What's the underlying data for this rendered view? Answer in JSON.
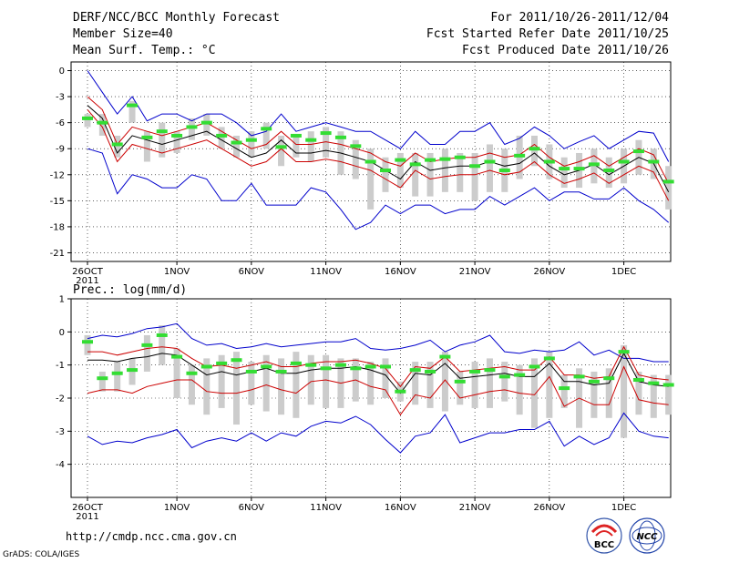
{
  "header": {
    "title": "DERF/NCC/BCC Monthly Forecast",
    "member_size": "Member Size=40",
    "variable": "Mean Surf. Temp.: °C",
    "period": "For 2011/10/26-2011/12/04",
    "start_date": "Fcst Started Refer Date 2011/10/25",
    "produced_date": "Fcst Produced Date 2011/10/26"
  },
  "footer": {
    "url": "http://cmdp.ncc.cma.gov.cn",
    "credit": "GrADS: COLA/IGES",
    "logo_bcc": "BCC",
    "logo_ncc": "NCC"
  },
  "colors": {
    "max_min": "#0000cc",
    "spread": "#cc0000",
    "mean": "#000000",
    "median": "#33dd33",
    "box": "#cccccc"
  },
  "chart_data": [
    {
      "type": "box-line",
      "title": "Mean Surf. Temp.: °C",
      "ylim": [
        -22,
        1
      ],
      "yticks": [
        0,
        -3,
        -6,
        -9,
        -12,
        -15,
        -18,
        -21
      ],
      "xticks": [
        {
          "day": 0,
          "label": "26OCT",
          "sub": "2011"
        },
        {
          "day": 6,
          "label": "1NOV"
        },
        {
          "day": 11,
          "label": "6NOV"
        },
        {
          "day": 16,
          "label": "11NOV"
        },
        {
          "day": 21,
          "label": "16NOV"
        },
        {
          "day": 26,
          "label": "21NOV"
        },
        {
          "day": 31,
          "label": "26NOV"
        },
        {
          "day": 36,
          "label": "1DEC"
        }
      ],
      "max": [
        0,
        -2.5,
        -5,
        -3,
        -5.8,
        -5,
        -5,
        -5.8,
        -5,
        -5,
        -6,
        -7.5,
        -7,
        -5,
        -7,
        -6.5,
        -6,
        -6.5,
        -7,
        -7,
        -8,
        -9,
        -7,
        -8.5,
        -8.5,
        -7,
        -7,
        -6,
        -8.5,
        -7.8,
        -6.5,
        -7.5,
        -9,
        -8.2,
        -7.5,
        -9,
        -8,
        -7,
        -7.2,
        -10.5
      ],
      "upper": [
        -3,
        -4.5,
        -8.5,
        -6.5,
        -7,
        -7.5,
        -7,
        -6.5,
        -6,
        -7,
        -8,
        -9,
        -8.5,
        -7,
        -8.5,
        -8.5,
        -8.2,
        -8.5,
        -9,
        -9.5,
        -10.5,
        -11,
        -9.5,
        -10.5,
        -10.2,
        -10,
        -10,
        -9.5,
        -10,
        -9.7,
        -8.5,
        -10,
        -11,
        -10.5,
        -9.8,
        -11,
        -10,
        -9,
        -9.7,
        -13
      ],
      "mean": [
        -4,
        -5.5,
        -9.5,
        -7.5,
        -8,
        -8.5,
        -8,
        -7.5,
        -7,
        -8,
        -9,
        -10,
        -9.5,
        -8,
        -9.5,
        -9.5,
        -9.2,
        -9.5,
        -10,
        -10.5,
        -11.5,
        -12.5,
        -10.5,
        -11.5,
        -11.2,
        -11,
        -11,
        -10.5,
        -11,
        -10.7,
        -9.5,
        -11,
        -12,
        -11.5,
        -10.8,
        -12,
        -11,
        -10,
        -10.7,
        -14
      ],
      "lower": [
        -4.5,
        -6.5,
        -10.5,
        -8.5,
        -9,
        -9.5,
        -9,
        -8.5,
        -8,
        -9,
        -10,
        -11,
        -10.5,
        -9,
        -10.5,
        -10.5,
        -10.2,
        -10.5,
        -11,
        -11.5,
        -12.5,
        -13.5,
        -11.5,
        -12.5,
        -12.2,
        -12,
        -12,
        -11.5,
        -12,
        -11.7,
        -10.5,
        -12,
        -13,
        -12.5,
        -11.8,
        -13,
        -12,
        -11,
        -11.7,
        -15
      ],
      "min": [
        -9,
        -9.5,
        -14.2,
        -12,
        -12.5,
        -13.5,
        -13.5,
        -12,
        -12.5,
        -15,
        -15,
        -13,
        -15.5,
        -15.5,
        -15.5,
        -13.5,
        -14,
        -16,
        -18.3,
        -17.5,
        -15.5,
        -16.5,
        -15.5,
        -15.5,
        -16.5,
        -16,
        -16,
        -14.5,
        -15.5,
        -14.5,
        -13.5,
        -15,
        -14,
        -14,
        -14.8,
        -14.8,
        -13.5,
        -15,
        -16,
        -17.5
      ],
      "median": [
        -5.5,
        -6,
        -8.5,
        -4,
        -7.7,
        -7,
        -7.5,
        -6.5,
        -6,
        -7.5,
        -8.3,
        -8,
        -6.7,
        -8.8,
        -7.5,
        -8,
        -7.2,
        -7.7,
        -8.7,
        -10.5,
        -11.5,
        -10.3,
        -10.8,
        -10.3,
        -10.2,
        -10,
        -11,
        -10.5,
        -11.5,
        -9.8,
        -9,
        -10.5,
        -11.3,
        -11.3,
        -10.8,
        -11.5,
        -10.5,
        -9.3,
        -10.5,
        -12.8
      ],
      "box_top": [
        -5,
        -5,
        -7.5,
        -3.5,
        -7,
        -6,
        -7,
        -5.5,
        -5,
        -6.5,
        -7.5,
        -7,
        -6,
        -7.5,
        -7.5,
        -7,
        -6.5,
        -7,
        -8,
        -9,
        -10,
        -9.5,
        -9.5,
        -9.5,
        -9,
        -9.5,
        -9.5,
        -8.5,
        -9,
        -7.5,
        -7.5,
        -8.5,
        -10,
        -9.5,
        -9,
        -10,
        -9,
        -8,
        -9,
        -11
      ],
      "box_bottom": [
        -6.5,
        -7.5,
        -10,
        -6,
        -10.5,
        -10,
        -9.5,
        -8,
        -7.5,
        -9,
        -10,
        -10,
        -9,
        -11,
        -10,
        -10.5,
        -10,
        -12,
        -12.5,
        -16,
        -14,
        -13.5,
        -14.5,
        -14.5,
        -14,
        -14,
        -15,
        -14,
        -14,
        -12.5,
        -11,
        -12.5,
        -13.5,
        -13.5,
        -13,
        -13.5,
        -13,
        -12,
        -12.5,
        -16
      ]
    },
    {
      "type": "box-line",
      "title": "Prec.: log(mm/d)",
      "ylim": [
        -5,
        1
      ],
      "yticks": [
        1,
        0,
        -1,
        -2,
        -3,
        -4
      ],
      "xticks": [
        {
          "day": 0,
          "label": "26OCT",
          "sub": "2011"
        },
        {
          "day": 6,
          "label": "1NOV"
        },
        {
          "day": 11,
          "label": "6NOV"
        },
        {
          "day": 16,
          "label": "11NOV"
        },
        {
          "day": 21,
          "label": "16NOV"
        },
        {
          "day": 26,
          "label": "21NOV"
        },
        {
          "day": 31,
          "label": "26NOV"
        },
        {
          "day": 36,
          "label": "1DEC"
        }
      ],
      "max": [
        -0.2,
        -0.1,
        -0.15,
        -0.05,
        0.1,
        0.15,
        0.25,
        -0.2,
        -0.4,
        -0.35,
        -0.5,
        -0.45,
        -0.35,
        -0.45,
        -0.4,
        -0.35,
        -0.3,
        -0.3,
        -0.2,
        -0.5,
        -0.55,
        -0.5,
        -0.4,
        -0.25,
        -0.6,
        -0.4,
        -0.3,
        -0.1,
        -0.6,
        -0.65,
        -0.55,
        -0.6,
        -0.55,
        -0.3,
        -0.7,
        -0.55,
        -0.8,
        -0.8,
        -0.9,
        -0.9
      ],
      "upper": [
        -0.6,
        -0.6,
        -0.7,
        -0.6,
        -0.5,
        -0.45,
        -0.5,
        -0.8,
        -1.05,
        -1,
        -1.1,
        -1,
        -0.9,
        -1.05,
        -1.05,
        -0.95,
        -0.9,
        -0.9,
        -0.85,
        -0.95,
        -1.1,
        -1.65,
        -1.05,
        -1.1,
        -0.75,
        -1.2,
        -1.15,
        -1.1,
        -1.05,
        -1.15,
        -1.15,
        -0.75,
        -1.3,
        -1.3,
        -1.4,
        -1.35,
        -0.45,
        -1.3,
        -1.4,
        -1.45
      ],
      "mean": [
        -0.85,
        -0.85,
        -0.9,
        -0.8,
        -0.75,
        -0.65,
        -0.7,
        -1.0,
        -1.3,
        -1.2,
        -1.3,
        -1.2,
        -1.1,
        -1.25,
        -1.25,
        -1.15,
        -1.1,
        -1.1,
        -1.05,
        -1.15,
        -1.3,
        -1.85,
        -1.25,
        -1.3,
        -0.95,
        -1.4,
        -1.35,
        -1.3,
        -1.25,
        -1.35,
        -1.35,
        -0.95,
        -1.5,
        -1.5,
        -1.6,
        -1.55,
        -0.65,
        -1.5,
        -1.6,
        -1.65
      ],
      "lower": [
        -1.85,
        -1.75,
        -1.75,
        -1.85,
        -1.65,
        -1.55,
        -1.45,
        -1.45,
        -1.8,
        -1.85,
        -1.85,
        -1.75,
        -1.6,
        -1.75,
        -1.85,
        -1.5,
        -1.45,
        -1.55,
        -1.45,
        -1.65,
        -1.75,
        -2.5,
        -1.9,
        -2.0,
        -1.45,
        -2.0,
        -1.9,
        -1.8,
        -1.75,
        -1.85,
        -1.9,
        -1.35,
        -2.25,
        -2.0,
        -2.2,
        -2.2,
        -1.05,
        -2.05,
        -2.15,
        -2.2
      ],
      "min": [
        -3.15,
        -3.4,
        -3.3,
        -3.35,
        -3.2,
        -3.1,
        -2.95,
        -3.5,
        -3.3,
        -3.2,
        -3.3,
        -3.05,
        -3.3,
        -3.05,
        -3.15,
        -2.85,
        -2.7,
        -2.75,
        -2.55,
        -2.8,
        -3.25,
        -3.65,
        -3.15,
        -3.05,
        -2.5,
        -3.35,
        -3.2,
        -3.05,
        -3.05,
        -2.95,
        -2.95,
        -2.7,
        -3.45,
        -3.15,
        -3.4,
        -3.2,
        -2.45,
        -3.0,
        -3.15,
        -3.2
      ],
      "median": [
        -0.3,
        -1.4,
        -1.25,
        -1.15,
        -0.4,
        -0.1,
        -0.75,
        -1.25,
        -1.05,
        -0.95,
        -0.85,
        -1.2,
        -1.05,
        -1.2,
        -0.95,
        -1.0,
        -1.1,
        -1.0,
        -1.1,
        -1.05,
        -1.05,
        -1.8,
        -1.15,
        -1.2,
        -0.75,
        -1.5,
        -1.2,
        -1.15,
        -1.35,
        -1.3,
        -1.05,
        -0.8,
        -1.7,
        -1.35,
        -1.5,
        -1.4,
        -0.6,
        -1.45,
        -1.55,
        -1.6
      ],
      "box_top": [
        -0.1,
        -1.2,
        -0.9,
        -0.8,
        -0.1,
        0.2,
        -0.5,
        -1.0,
        -0.8,
        -0.7,
        -0.6,
        -0.9,
        -0.7,
        -0.8,
        -0.6,
        -0.7,
        -0.7,
        -0.8,
        -0.8,
        -0.9,
        -0.8,
        -1.5,
        -0.9,
        -0.9,
        -0.6,
        -1.2,
        -0.9,
        -0.8,
        -0.9,
        -1.0,
        -0.8,
        -0.6,
        -1.3,
        -1.1,
        -1.2,
        -1.1,
        -0.4,
        -1.2,
        -1.3,
        -1.3
      ],
      "box_bottom": [
        -0.7,
        -1.8,
        -1.8,
        -1.6,
        -1.2,
        -1.0,
        -2.0,
        -2.2,
        -2.5,
        -2.3,
        -2.8,
        -2.2,
        -2.4,
        -2.5,
        -2.6,
        -2.2,
        -2.3,
        -2.3,
        -2.1,
        -2.2,
        -2.0,
        -2.1,
        -2.2,
        -2.3,
        -2.4,
        -2.2,
        -2.3,
        -2.3,
        -2.1,
        -2.5,
        -2.9,
        -2.6,
        -2.3,
        -2.9,
        -2.6,
        -2.6,
        -3.2,
        -2.5,
        -2.6,
        -2.5
      ]
    }
  ]
}
